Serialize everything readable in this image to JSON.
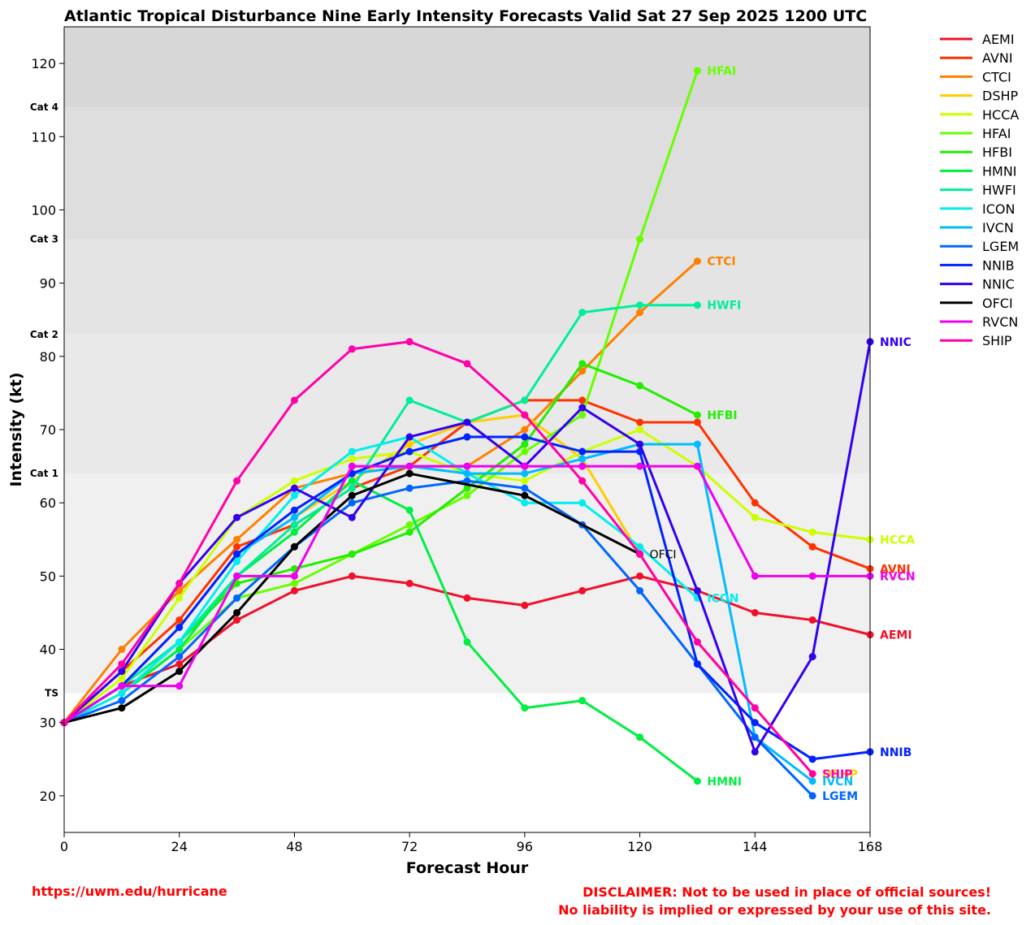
{
  "chart_data": {
    "type": "line",
    "title": "Atlantic Tropical Disturbance Nine Early Intensity Forecasts Valid Sat 27 Sep 2025 1200 UTC",
    "xlabel": "Forecast Hour",
    "ylabel": "Intensity (kt)",
    "xlim": [
      0,
      168
    ],
    "ylim": [
      15,
      125
    ],
    "xticks": [
      0,
      24,
      48,
      72,
      96,
      120,
      144,
      168
    ],
    "yticks": [
      20,
      30,
      40,
      50,
      60,
      70,
      80,
      90,
      100,
      110,
      120
    ],
    "grid": false,
    "legend_position": "right, outside plot",
    "bands": [
      {
        "label": "TS",
        "from": 34,
        "to": 64,
        "color": "#f0f0f0"
      },
      {
        "label": "Cat 1",
        "from": 64,
        "to": 83,
        "color": "#e9e9e9"
      },
      {
        "label": "Cat 2",
        "from": 83,
        "to": 96,
        "color": "#e4e4e4"
      },
      {
        "label": "Cat 3",
        "from": 96,
        "to": 114,
        "color": "#dedede"
      },
      {
        "label": "Cat 4",
        "from": 114,
        "to": 125,
        "color": "#d7d7d7"
      }
    ],
    "series": [
      {
        "name": "AEMI",
        "color": "#f0102a",
        "points": [
          [
            0,
            30
          ],
          [
            12,
            35
          ],
          [
            24,
            38
          ],
          [
            36,
            44
          ],
          [
            48,
            48
          ],
          [
            60,
            50
          ],
          [
            72,
            49
          ],
          [
            84,
            47
          ],
          [
            96,
            46
          ],
          [
            108,
            48
          ],
          [
            120,
            50
          ],
          [
            132,
            48
          ],
          [
            144,
            45
          ],
          [
            156,
            44
          ],
          [
            168,
            42
          ]
        ]
      },
      {
        "name": "AVNI",
        "color": "#ff3300",
        "points": [
          [
            0,
            30
          ],
          [
            12,
            37
          ],
          [
            24,
            44
          ],
          [
            36,
            54
          ],
          [
            48,
            57
          ],
          [
            60,
            62
          ],
          [
            72,
            65
          ],
          [
            84,
            71
          ],
          [
            96,
            74
          ],
          [
            108,
            74
          ],
          [
            120,
            71
          ],
          [
            132,
            71
          ],
          [
            144,
            60
          ],
          [
            156,
            54
          ],
          [
            168,
            51
          ]
        ]
      },
      {
        "name": "CTCI",
        "color": "#ff8000",
        "points": [
          [
            0,
            30
          ],
          [
            12,
            40
          ],
          [
            24,
            48
          ],
          [
            36,
            55
          ],
          [
            48,
            62
          ],
          [
            60,
            64
          ],
          [
            72,
            65
          ],
          [
            84,
            65
          ],
          [
            96,
            70
          ],
          [
            108,
            78
          ],
          [
            120,
            86
          ],
          [
            132,
            93
          ]
        ]
      },
      {
        "name": "DSHP",
        "color": "#ffcc00",
        "points": [
          [
            0,
            30
          ],
          [
            12,
            35
          ],
          [
            24,
            43
          ],
          [
            36,
            53
          ],
          [
            48,
            58
          ],
          [
            60,
            63
          ],
          [
            72,
            68
          ],
          [
            84,
            71
          ],
          [
            96,
            72
          ],
          [
            108,
            66
          ],
          [
            120,
            53
          ],
          [
            132,
            41
          ],
          [
            144,
            32
          ],
          [
            156,
            23
          ]
        ]
      },
      {
        "name": "HCCA",
        "color": "#ccff00",
        "points": [
          [
            0,
            30
          ],
          [
            12,
            36
          ],
          [
            24,
            47
          ],
          [
            36,
            58
          ],
          [
            48,
            63
          ],
          [
            60,
            66
          ],
          [
            72,
            67
          ],
          [
            84,
            64
          ],
          [
            96,
            63
          ],
          [
            108,
            67
          ],
          [
            120,
            70
          ],
          [
            132,
            65
          ],
          [
            144,
            58
          ],
          [
            156,
            56
          ],
          [
            168,
            55
          ]
        ]
      },
      {
        "name": "HFAI",
        "color": "#66ff00",
        "points": [
          [
            0,
            30
          ],
          [
            12,
            34
          ],
          [
            24,
            40
          ],
          [
            36,
            47
          ],
          [
            48,
            49
          ],
          [
            60,
            53
          ],
          [
            72,
            57
          ],
          [
            84,
            61
          ],
          [
            96,
            67
          ],
          [
            108,
            72
          ],
          [
            120,
            96
          ],
          [
            132,
            119
          ]
        ]
      },
      {
        "name": "HFBI",
        "color": "#22ee00",
        "points": [
          [
            0,
            30
          ],
          [
            12,
            35
          ],
          [
            24,
            41
          ],
          [
            36,
            49
          ],
          [
            48,
            51
          ],
          [
            60,
            53
          ],
          [
            72,
            56
          ],
          [
            84,
            62
          ],
          [
            96,
            68
          ],
          [
            108,
            79
          ],
          [
            120,
            76
          ],
          [
            132,
            72
          ]
        ]
      },
      {
        "name": "HMNI",
        "color": "#00ee44",
        "points": [
          [
            0,
            30
          ],
          [
            12,
            34
          ],
          [
            24,
            40
          ],
          [
            36,
            50
          ],
          [
            48,
            56
          ],
          [
            60,
            63
          ],
          [
            72,
            59
          ],
          [
            84,
            41
          ],
          [
            96,
            32
          ],
          [
            108,
            33
          ],
          [
            120,
            28
          ],
          [
            132,
            22
          ]
        ]
      },
      {
        "name": "HWFI",
        "color": "#00ee99",
        "points": [
          [
            0,
            30
          ],
          [
            12,
            35
          ],
          [
            24,
            41
          ],
          [
            36,
            50
          ],
          [
            48,
            57
          ],
          [
            60,
            62
          ],
          [
            72,
            74
          ],
          [
            84,
            71
          ],
          [
            96,
            74
          ],
          [
            108,
            86
          ],
          [
            120,
            87
          ],
          [
            132,
            87
          ]
        ]
      },
      {
        "name": "ICON",
        "color": "#00eeee",
        "points": [
          [
            0,
            30
          ],
          [
            12,
            34
          ],
          [
            24,
            41
          ],
          [
            36,
            52
          ],
          [
            48,
            61
          ],
          [
            60,
            67
          ],
          [
            72,
            69
          ],
          [
            84,
            64
          ],
          [
            96,
            60
          ],
          [
            108,
            60
          ],
          [
            120,
            54
          ],
          [
            132,
            47
          ]
        ]
      },
      {
        "name": "IVCN",
        "color": "#00bbff",
        "points": [
          [
            0,
            30
          ],
          [
            12,
            35
          ],
          [
            24,
            43
          ],
          [
            36,
            53
          ],
          [
            48,
            58
          ],
          [
            60,
            64
          ],
          [
            72,
            65
          ],
          [
            84,
            64
          ],
          [
            96,
            64
          ],
          [
            108,
            66
          ],
          [
            120,
            68
          ],
          [
            132,
            68
          ],
          [
            144,
            28
          ],
          [
            156,
            22
          ]
        ]
      },
      {
        "name": "LGEM",
        "color": "#0066ff",
        "points": [
          [
            0,
            30
          ],
          [
            12,
            33
          ],
          [
            24,
            39
          ],
          [
            36,
            47
          ],
          [
            48,
            54
          ],
          [
            60,
            60
          ],
          [
            72,
            62
          ],
          [
            84,
            63
          ],
          [
            96,
            62
          ],
          [
            108,
            57
          ],
          [
            120,
            48
          ],
          [
            132,
            38
          ],
          [
            144,
            28
          ],
          [
            156,
            20
          ]
        ]
      },
      {
        "name": "NNIB",
        "color": "#0022ff",
        "points": [
          [
            0,
            30
          ],
          [
            12,
            35
          ],
          [
            24,
            43
          ],
          [
            36,
            53
          ],
          [
            48,
            59
          ],
          [
            60,
            64
          ],
          [
            72,
            67
          ],
          [
            84,
            69
          ],
          [
            96,
            69
          ],
          [
            108,
            67
          ],
          [
            120,
            67
          ],
          [
            132,
            38
          ],
          [
            144,
            30
          ],
          [
            156,
            25
          ],
          [
            168,
            26
          ]
        ]
      },
      {
        "name": "NNIC",
        "color": "#3300ee",
        "points": [
          [
            0,
            30
          ],
          [
            12,
            37
          ],
          [
            24,
            49
          ],
          [
            36,
            58
          ],
          [
            48,
            62
          ],
          [
            60,
            58
          ],
          [
            72,
            69
          ],
          [
            84,
            71
          ],
          [
            96,
            65
          ],
          [
            108,
            73
          ],
          [
            120,
            68
          ],
          [
            132,
            48
          ],
          [
            144,
            26
          ],
          [
            156,
            39
          ],
          [
            168,
            82
          ]
        ]
      },
      {
        "name": "OFCI",
        "color": "#000000",
        "points": [
          [
            0,
            30
          ],
          [
            12,
            32
          ],
          [
            24,
            37
          ],
          [
            36,
            45
          ],
          [
            48,
            54
          ],
          [
            60,
            61
          ],
          [
            72,
            64
          ],
          [
            96,
            61
          ],
          [
            120,
            53
          ]
        ]
      },
      {
        "name": "RVCN",
        "color": "#ee00ee",
        "points": [
          [
            0,
            30
          ],
          [
            12,
            35
          ],
          [
            24,
            35
          ],
          [
            36,
            50
          ],
          [
            48,
            50
          ],
          [
            60,
            65
          ],
          [
            72,
            65
          ],
          [
            84,
            65
          ],
          [
            96,
            65
          ],
          [
            108,
            65
          ],
          [
            120,
            65
          ],
          [
            132,
            65
          ],
          [
            144,
            50
          ],
          [
            156,
            50
          ],
          [
            168,
            50
          ]
        ]
      },
      {
        "name": "SHIP",
        "color": "#ff00aa",
        "points": [
          [
            0,
            30
          ],
          [
            12,
            38
          ],
          [
            24,
            49
          ],
          [
            36,
            63
          ],
          [
            48,
            74
          ],
          [
            60,
            81
          ],
          [
            72,
            82
          ],
          [
            84,
            79
          ],
          [
            96,
            72
          ],
          [
            108,
            63
          ],
          [
            120,
            53
          ],
          [
            132,
            41
          ],
          [
            144,
            32
          ],
          [
            156,
            23
          ]
        ]
      }
    ],
    "end_labels": [
      {
        "series": "HFAI",
        "text": "HFAI"
      },
      {
        "series": "CTCI",
        "text": "CTCI"
      },
      {
        "series": "HWFI",
        "text": "HWFI"
      },
      {
        "series": "NNIC",
        "text": "NNIC"
      },
      {
        "series": "HFBI",
        "text": "HFBI"
      },
      {
        "series": "HCCA",
        "text": "HCCA"
      },
      {
        "series": "AVNI",
        "text": "AVNI"
      },
      {
        "series": "RVCN",
        "text": "RVCN"
      },
      {
        "series": "OFCI",
        "text": "OFCI"
      },
      {
        "series": "ICON",
        "text": "ICON"
      },
      {
        "series": "AEMI",
        "text": "AEMI"
      },
      {
        "series": "NNIB",
        "text": "NNIB"
      },
      {
        "series": "DSHP",
        "text": "DSHP"
      },
      {
        "series": "SHIP",
        "text": "SHIP"
      },
      {
        "series": "IVCN",
        "text": "IVCN"
      },
      {
        "series": "LGEM",
        "text": "LGEM"
      },
      {
        "series": "HMNI",
        "text": "HMNI"
      }
    ]
  },
  "footer": {
    "url": "https://uwm.edu/hurricane",
    "disclaimer_line1": "DISCLAIMER: Not to be used in place of official sources!",
    "disclaimer_line2": "No liability is implied or expressed by your use of this site."
  }
}
